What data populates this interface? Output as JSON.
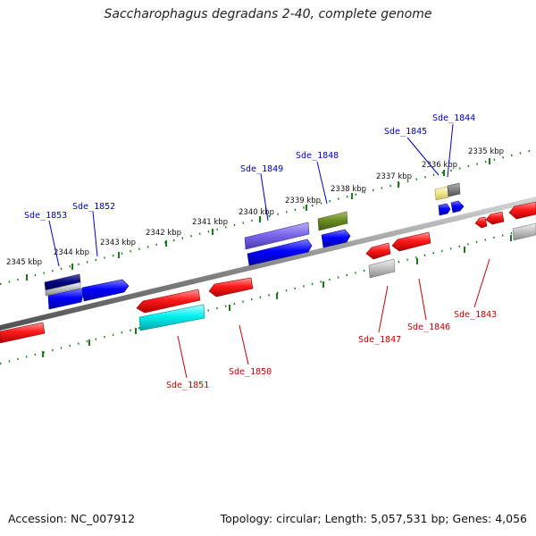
{
  "title": "Saccharophagus degradans 2-40, complete genome",
  "footer": {
    "accession": "Accession: NC_007912",
    "summary": "Topology: circular; Length: 5,057,531 bp; Genes: 4,056"
  },
  "colors": {
    "forward_label": "#0000cc",
    "reverse_label": "#cc0000",
    "backbone": "#8c8c8c",
    "tick": "#1a7a1a"
  },
  "kbp_labels": [
    "2345 kbp",
    "2344 kbp",
    "2343 kbp",
    "2342 kbp",
    "2341 kbp",
    "2340 kbp",
    "2339 kbp",
    "2338 kbp",
    "2337 kbp",
    "2336 kbp",
    "2335 kbp"
  ],
  "gene_labels": {
    "forward": [
      "Sde_1853",
      "Sde_1852",
      "Sde_1849",
      "Sde_1848",
      "Sde_1845",
      "Sde_1844"
    ],
    "reverse": [
      "Sde_1851",
      "Sde_1850",
      "Sde_1847",
      "Sde_1846",
      "Sde_1843"
    ]
  }
}
